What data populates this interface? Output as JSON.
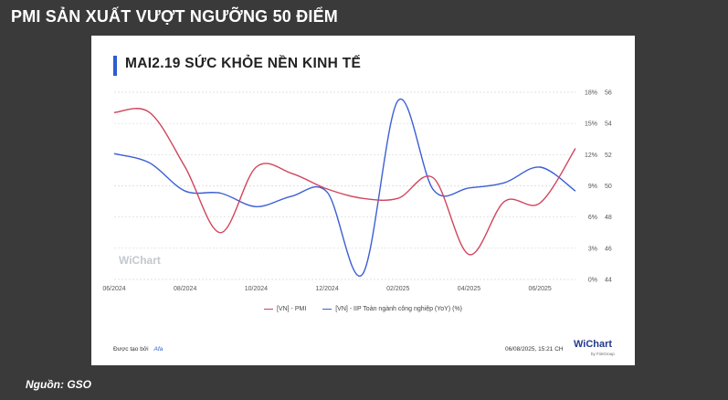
{
  "header": {
    "title": "PMI SẢN XUẤT VƯỢT NGƯỠNG 50 ĐIỂM"
  },
  "card": {
    "title": "MAI2.19 SỨC KHỎE NỀN KINH TẾ",
    "watermark": "WiChart",
    "footer_prefix": "Được tạo bởi",
    "footer_brand": "Afa",
    "timestamp": "06/08/2025, 15:21 CH",
    "logo": "WiChart",
    "logo_sub": "by FiinGroup"
  },
  "source": "Nguồn: GSO",
  "colors": {
    "pmi": "#d0455e",
    "iip": "#3b5fd6",
    "accent": "#2f5bd3"
  },
  "chart_data": {
    "type": "line",
    "title": "MAI2.19 SỨC KHỎE NỀN KINH TẾ",
    "x": [
      "06/2024",
      "07/2024",
      "08/2024",
      "09/2024",
      "10/2024",
      "11/2024",
      "12/2024",
      "01/2025",
      "02/2025",
      "03/2025",
      "04/2025",
      "05/2025",
      "06/2025",
      "07/2025"
    ],
    "x_tick_labels": [
      "06/2024",
      "08/2024",
      "10/2024",
      "12/2024",
      "02/2025",
      "04/2025",
      "06/2025"
    ],
    "y_left_ticks": [
      "18%",
      "15%",
      "12%",
      "9%",
      "6%",
      "3%",
      "0%"
    ],
    "y_right_ticks": [
      "56",
      "54",
      "52",
      "50",
      "48",
      "46",
      "44"
    ],
    "y_left_range": [
      0,
      18
    ],
    "y_right_range": [
      44,
      56
    ],
    "grid": true,
    "legend_position": "bottom-center",
    "series": [
      {
        "name": "[VN] - PMI",
        "axis": "right",
        "color": "#d0455e",
        "values": [
          54.7,
          54.7,
          51.2,
          47.0,
          51.2,
          50.8,
          49.8,
          49.2,
          49.2,
          50.5,
          45.6,
          49.0,
          48.9,
          52.4
        ]
      },
      {
        "name": "[VN] - IIP Toàn ngành công nghiệp (YoY) (%)",
        "axis": "left",
        "color": "#3b5fd6",
        "values": [
          12.1,
          11.2,
          8.5,
          8.3,
          7.0,
          8.0,
          8.4,
          0.5,
          17.2,
          8.6,
          8.8,
          9.3,
          10.8,
          8.5
        ]
      }
    ]
  }
}
